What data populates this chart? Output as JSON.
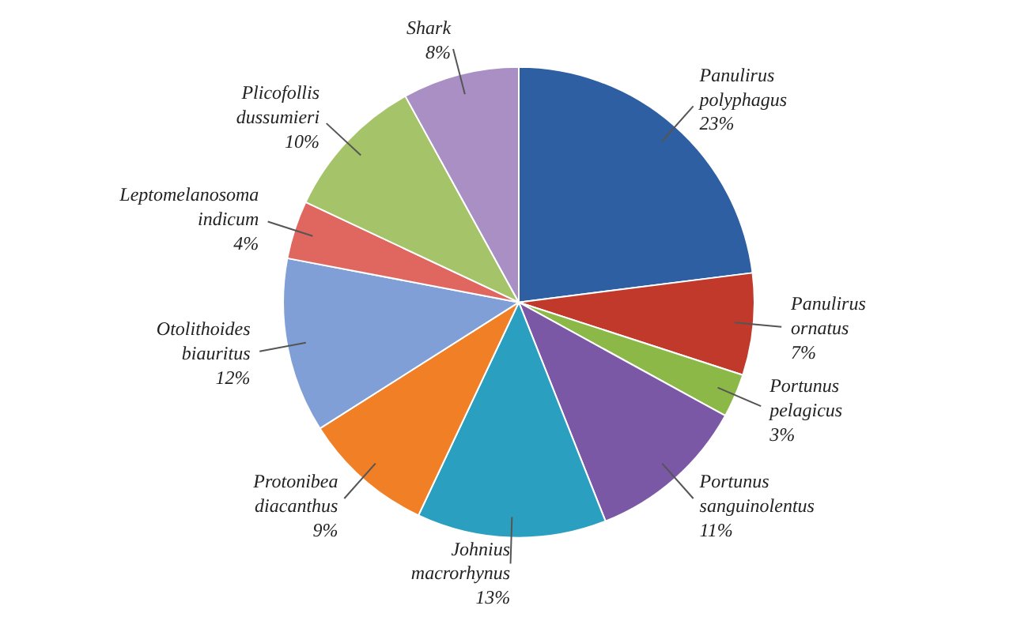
{
  "chart_data": {
    "type": "pie",
    "categories": [
      "Panulirus polyphagus",
      "Panulirus ornatus",
      "Portunus pelagicus",
      "Portunus sanguinolentus",
      "Johnius macrorhynus",
      "Protonibea diacanthus",
      "Otolithoides biauritus",
      "Leptomelanosoma indicum",
      "Plicofollis dussumieri",
      "Shark"
    ],
    "values": [
      23,
      7,
      3,
      11,
      13,
      9,
      12,
      4,
      10,
      8
    ],
    "value_labels": [
      "23%",
      "7%",
      "3%",
      "11%",
      "13%",
      "9%",
      "12%",
      "4%",
      "10%",
      "8%"
    ],
    "colors": [
      "#2e5fa3",
      "#c0392b",
      "#8cb847",
      "#7b58a6",
      "#2b9fbf",
      "#f07f26",
      "#7f9fd6",
      "#e06660",
      "#a5c46a",
      "#a98fc4"
    ]
  }
}
